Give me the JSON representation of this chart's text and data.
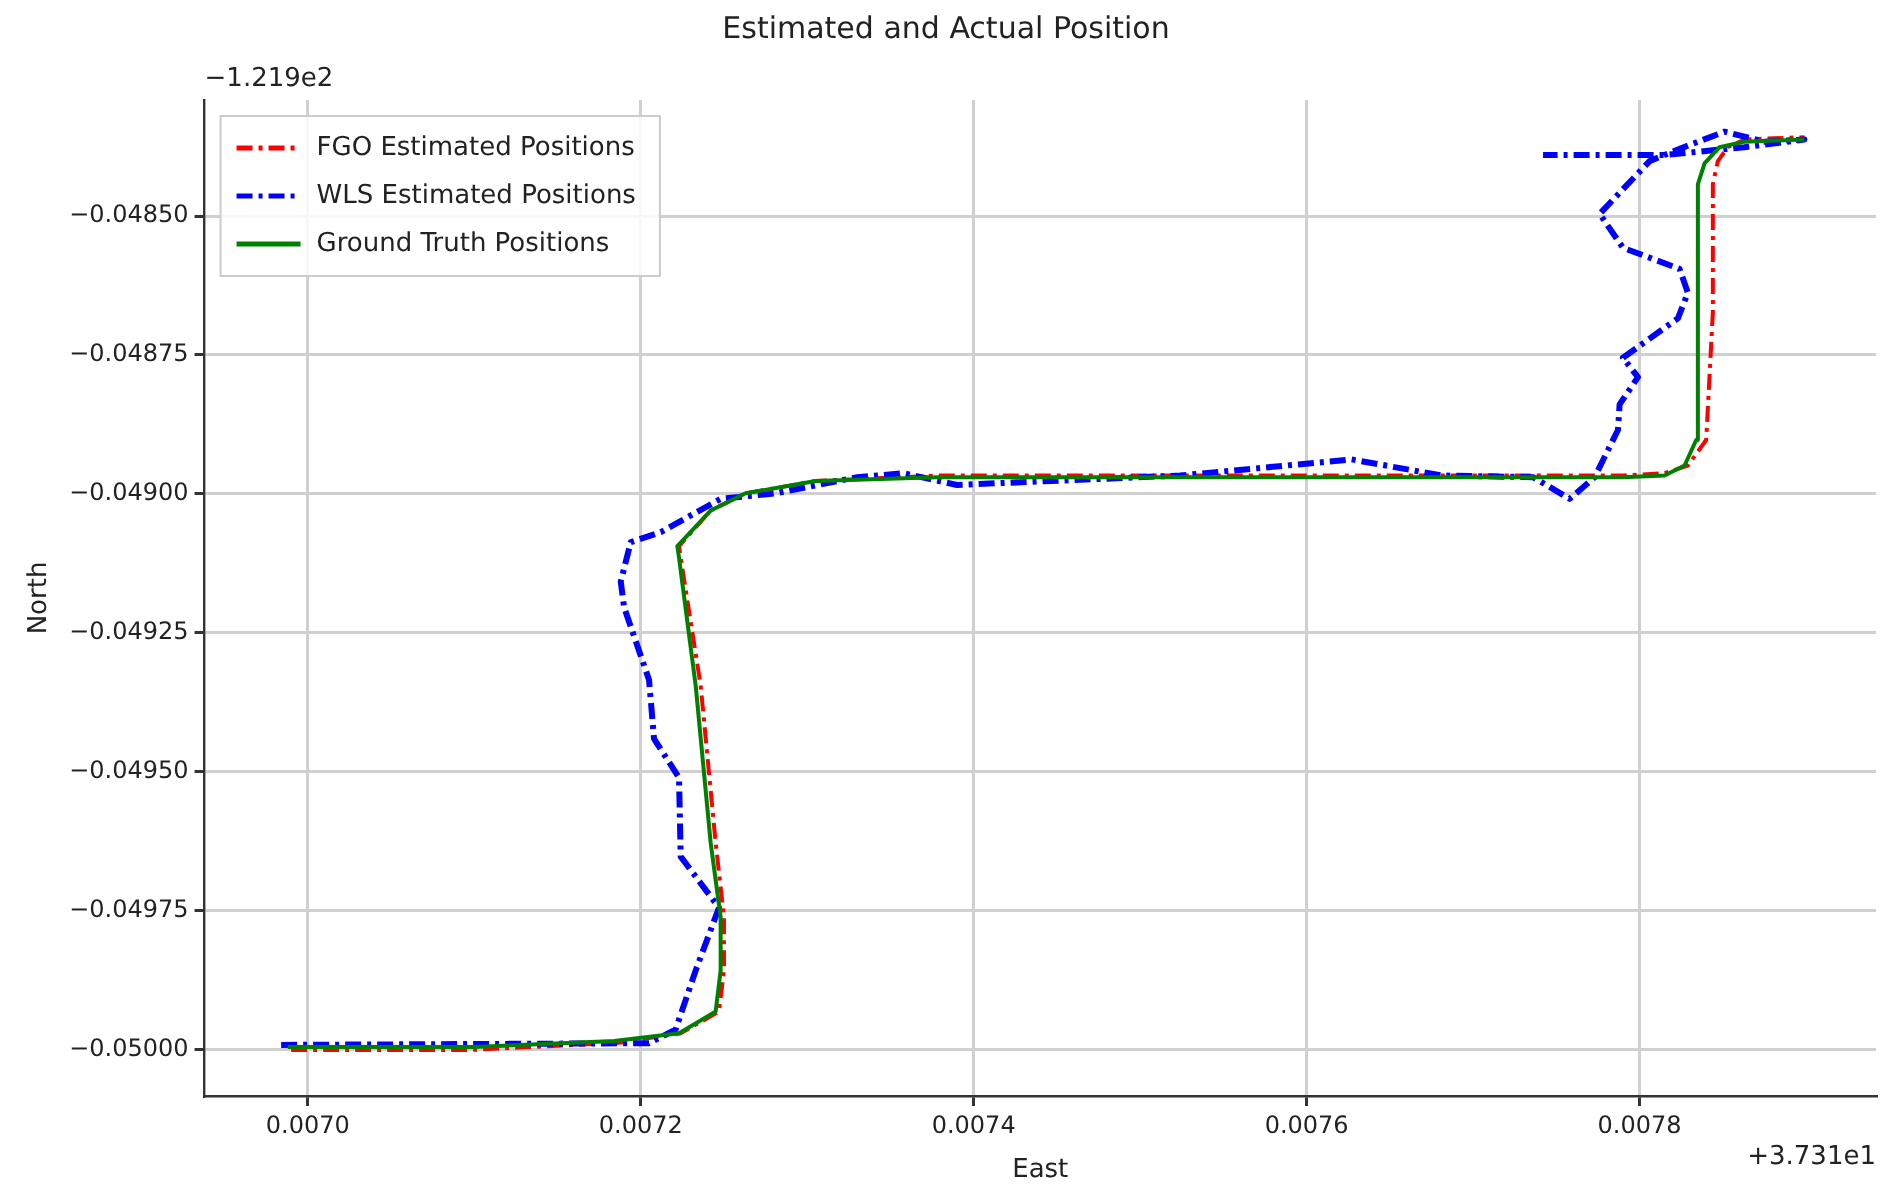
{
  "chart_data": {
    "type": "line",
    "title": "Estimated and Actual Position",
    "xlabel": "East",
    "ylabel": "North",
    "annotations": [
      "−1.219e2",
      "+3.731e1"
    ],
    "xlim": [
      0.006938,
      0.007942
    ],
    "ylim": [
      -0.050084,
      -0.048291
    ],
    "xticks": [
      {
        "value": 0.007,
        "label": "0.0070"
      },
      {
        "value": 0.0072,
        "label": "0.0072"
      },
      {
        "value": 0.0074,
        "label": "0.0074"
      },
      {
        "value": 0.0076,
        "label": "0.0076"
      },
      {
        "value": 0.0078,
        "label": "0.0078"
      }
    ],
    "yticks": [
      {
        "value": -0.0485,
        "label": "−0.04850"
      },
      {
        "value": -0.04875,
        "label": "−0.04875"
      },
      {
        "value": -0.049,
        "label": "−0.04900"
      },
      {
        "value": -0.04925,
        "label": "−0.04925"
      },
      {
        "value": -0.0495,
        "label": "−0.04950"
      },
      {
        "value": -0.04975,
        "label": "−0.04975"
      },
      {
        "value": -0.05,
        "label": "−0.05000"
      }
    ],
    "grid": true,
    "legend": "top left",
    "marker": "none",
    "series": [
      {
        "name": "FGO Estimated Positions",
        "color": "#ff0000",
        "line_style": "dashed",
        "x": [
          0.00699,
          0.007099,
          0.007187,
          0.007224,
          0.007247,
          0.00725,
          0.00725,
          0.007245,
          0.007236,
          0.007224,
          0.007223,
          0.007242,
          0.007263,
          0.007305,
          0.007378,
          0.007524,
          0.007645,
          0.00779,
          0.007815,
          0.007829,
          0.00784,
          0.007844,
          0.007844,
          0.007847,
          0.007853,
          0.007863,
          0.007899
        ],
        "values": [
          -0.050001,
          -0.050001,
          -0.049988,
          -0.049971,
          -0.049932,
          -0.049858,
          -0.049762,
          -0.049628,
          -0.049345,
          -0.049115,
          -0.049094,
          -0.04903,
          -0.048999,
          -0.048977,
          -0.048967,
          -0.048967,
          -0.048967,
          -0.048967,
          -0.048963,
          -0.048949,
          -0.048903,
          -0.048673,
          -0.048443,
          -0.048401,
          -0.048376,
          -0.048362,
          -0.048358
        ]
      },
      {
        "name": "WLS Estimated Positions",
        "color": "#0000ff",
        "line_style": "dashed",
        "x": [
          0.006984,
          0.007205,
          0.007221,
          0.007233,
          0.007247,
          0.007224,
          0.007223,
          0.007208,
          0.007205,
          0.00719,
          0.007188,
          0.007194,
          0.007212,
          0.007248,
          0.007281,
          0.00733,
          0.007358,
          0.00739,
          0.007524,
          0.007627,
          0.007681,
          0.007736,
          0.007758,
          0.007773,
          0.007787,
          0.007788,
          0.007799,
          0.00779,
          0.007823,
          0.007829,
          0.007824,
          0.00779,
          0.007776,
          0.007806,
          0.007823,
          0.007851,
          0.007875,
          0.007899,
          0.007863,
          0.007815,
          0.007742
        ],
        "values": [
          -0.049992,
          -0.049989,
          -0.049964,
          -0.049858,
          -0.049745,
          -0.049653,
          -0.049511,
          -0.049441,
          -0.049335,
          -0.049204,
          -0.049158,
          -0.049087,
          -0.049069,
          -0.049009,
          -0.048999,
          -0.04897,
          -0.048963,
          -0.048984,
          -0.048967,
          -0.048938,
          -0.048967,
          -0.04897,
          -0.049009,
          -0.04897,
          -0.048885,
          -0.048839,
          -0.04879,
          -0.048755,
          -0.048684,
          -0.048638,
          -0.048595,
          -0.048557,
          -0.048496,
          -0.048401,
          -0.04838,
          -0.048348,
          -0.048366,
          -0.048362,
          -0.048376,
          -0.04839,
          -0.04839
        ]
      },
      {
        "name": "Ground Truth Positions",
        "color": "#008000",
        "line_style": "solid",
        "x": [
          0.006988,
          0.007099,
          0.007184,
          0.007223,
          0.007245,
          0.007248,
          0.007248,
          0.007242,
          0.007233,
          0.007223,
          0.007222,
          0.007242,
          0.007263,
          0.007305,
          0.007378,
          0.007524,
          0.007645,
          0.00779,
          0.007815,
          0.007827,
          0.007834,
          0.007835,
          0.007839,
          0.007848,
          0.007863,
          0.007899
        ],
        "values": [
          -0.049996,
          -0.049996,
          -0.049985,
          -0.049971,
          -0.049932,
          -0.049858,
          -0.049762,
          -0.049628,
          -0.049345,
          -0.049115,
          -0.049094,
          -0.04903,
          -0.048999,
          -0.048977,
          -0.04897,
          -0.04897,
          -0.04897,
          -0.04897,
          -0.048967,
          -0.048949,
          -0.048903,
          -0.048443,
          -0.048405,
          -0.048376,
          -0.048366,
          -0.048362
        ]
      }
    ]
  }
}
